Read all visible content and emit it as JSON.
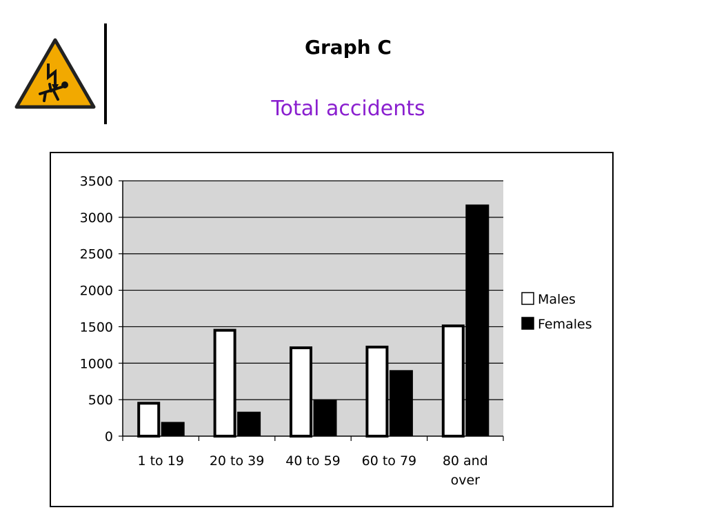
{
  "slide": {
    "title": "Graph C",
    "subtitle": "Total accidents",
    "logo_icon": "electric-shock-warning-icon",
    "colors": {
      "subtitle": "#8a1fcf",
      "sign_fill": "#f2a900",
      "plot_bg": "#d6d6d6"
    }
  },
  "chart_data": {
    "type": "bar",
    "title": "",
    "xlabel": "",
    "ylabel": "",
    "categories": [
      "1 to 19",
      "20 to 39",
      "40 to 59",
      "60 to 79",
      "80 and over"
    ],
    "category_lines": [
      [
        "1 to 19"
      ],
      [
        "20 to 39"
      ],
      [
        "40 to 59"
      ],
      [
        "60 to 79"
      ],
      [
        "80 and",
        "over"
      ]
    ],
    "series": [
      {
        "name": "Males",
        "color": "#ffffff",
        "values": [
          470,
          1470,
          1230,
          1240,
          1530
        ]
      },
      {
        "name": "Females",
        "color": "#000000",
        "values": [
          190,
          330,
          500,
          900,
          3170
        ]
      }
    ],
    "ylim": [
      0,
      3500
    ],
    "yticks": [
      "0",
      "500",
      "1000",
      "1500",
      "2000",
      "2500",
      "3000",
      "3500"
    ],
    "ytick_values": [
      0,
      500,
      1000,
      1500,
      2000,
      2500,
      3000,
      3500
    ],
    "grid": true,
    "legend": "right"
  }
}
